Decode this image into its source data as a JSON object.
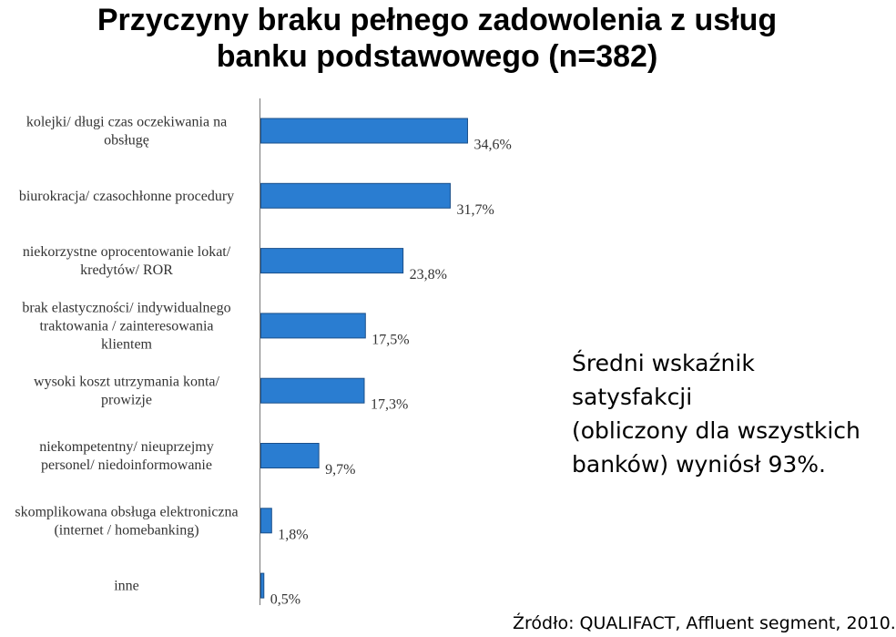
{
  "chart_data": {
    "type": "bar",
    "orientation": "horizontal",
    "title": "Przyczyny braku pełnego zadowolenia z usług\nbanku podstawowego (n=382)",
    "categories": [
      [
        "kolejki/ długi czas oczekiwania na",
        "obsługę"
      ],
      [
        "biurokracja/ czasochłonne procedury"
      ],
      [
        "niekorzystne oprocentowanie lokat/",
        "kredytów/ ROR"
      ],
      [
        "brak elastyczności/ indywidualnego",
        "traktowania / zainteresowania",
        "klientem"
      ],
      [
        "wysoki koszt utrzymania konta/",
        "prowizje"
      ],
      [
        "niekompetentny/ nieuprzejmy",
        "personel/ niedoinformowanie"
      ],
      [
        "skomplikowana obsługa elektroniczna",
        "(internet / homebanking)"
      ],
      [
        "inne"
      ]
    ],
    "values": [
      34.6,
      31.7,
      23.8,
      17.5,
      17.3,
      9.7,
      1.8,
      0.5
    ],
    "value_labels": [
      "34,6%",
      "31,7%",
      "23,8%",
      "17,5%",
      "17,3%",
      "9,7%",
      "1,8%",
      "0,5%"
    ],
    "unit": "%",
    "bar_color": "#2a7dd1",
    "bar_edge_color": "#1a4f8a",
    "grid": false,
    "legend": "none"
  },
  "annotation": {
    "text": "Średni wskaźnik satysfakcji\n(obliczony dla wszystkich\nbanków) wyniósł  93%."
  },
  "source": {
    "text": "Źródło: QUALIFACT, Affluent segment, 2010."
  }
}
